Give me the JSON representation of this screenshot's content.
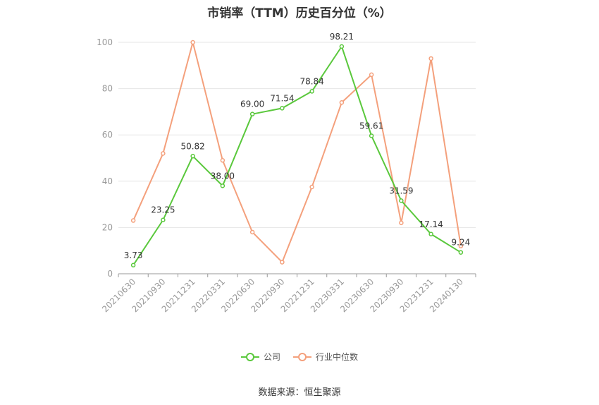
{
  "chart_data": {
    "type": "line",
    "title": "市销率（TTM）历史百分位（%）",
    "categories": [
      "20210630",
      "20210930",
      "20211231",
      "20220331",
      "20220630",
      "20220930",
      "20221231",
      "20230331",
      "20230630",
      "20230930",
      "20231231",
      "20240130"
    ],
    "y_ticks": [
      0,
      20,
      40,
      60,
      80,
      100
    ],
    "ylim": [
      0,
      100
    ],
    "grid": true,
    "legend_position": "bottom",
    "series": [
      {
        "name": "公司",
        "color": "#5ac83c",
        "values": [
          3.73,
          23.25,
          50.82,
          38.0,
          69.0,
          71.54,
          78.84,
          98.21,
          59.61,
          31.59,
          17.14,
          9.24
        ],
        "labels": [
          "3.73",
          "23.25",
          "50.82",
          "38.00",
          "69.00",
          "71.54",
          "78.84",
          "98.21",
          "59.61",
          "31.59",
          "17.14",
          "9.24"
        ]
      },
      {
        "name": "行业中位数",
        "color": "#f4a07c",
        "values": [
          23,
          52,
          100,
          49,
          18,
          5,
          37.5,
          74,
          86,
          22,
          93,
          12
        ]
      }
    ]
  },
  "source": "数据来源：恒生聚源"
}
